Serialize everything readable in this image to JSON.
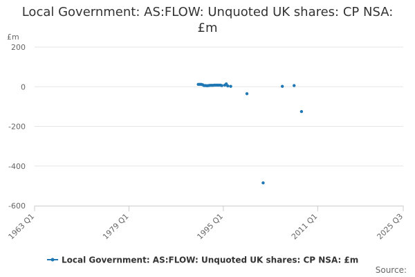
{
  "chart_data": {
    "type": "scatter",
    "title_line1": "Local Government: AS:FLOW: Unquoted UK shares: CP NSA:",
    "title_line2": "£m",
    "ylabel": "£m",
    "xlabel": "",
    "ylim": [
      -600,
      200
    ],
    "yticks": [
      200,
      0,
      -200,
      -400,
      -600
    ],
    "ytick_labels": [
      "200",
      "0",
      "-200",
      "-400",
      "-600"
    ],
    "xlim": [
      1963,
      2025.5
    ],
    "xticks": [
      1963,
      1979,
      1995,
      2011,
      2025.5
    ],
    "xtick_labels": [
      "1963 Q1",
      "1979 Q1",
      "1995 Q1",
      "2011 Q1",
      "2025 Q3"
    ],
    "grid": true,
    "legend_position": "bottom",
    "color": "#1f77b4",
    "source_label": "Source:",
    "series": [
      {
        "name": "Local Government: AS:FLOW: Unquoted UK shares: CP NSA: £m",
        "points": [
          [
            1990.75,
            12
          ],
          [
            1991.0,
            12
          ],
          [
            1991.25,
            12
          ],
          [
            1991.5,
            10
          ],
          [
            1991.75,
            6
          ],
          [
            1992.0,
            6
          ],
          [
            1992.25,
            5
          ],
          [
            1992.5,
            6
          ],
          [
            1992.75,
            7
          ],
          [
            1993.0,
            7
          ],
          [
            1993.25,
            7
          ],
          [
            1993.5,
            8
          ],
          [
            1993.75,
            8
          ],
          [
            1994.0,
            8
          ],
          [
            1994.25,
            8
          ],
          [
            1994.5,
            8
          ],
          [
            1994.75,
            6
          ],
          [
            1995.25,
            8
          ],
          [
            1995.5,
            14
          ],
          [
            1995.75,
            4
          ],
          [
            1996.25,
            2
          ],
          [
            1999.0,
            -35
          ],
          [
            2001.75,
            -485
          ],
          [
            2005.0,
            2
          ],
          [
            2007.0,
            6
          ],
          [
            2008.25,
            -125
          ]
        ]
      }
    ]
  }
}
